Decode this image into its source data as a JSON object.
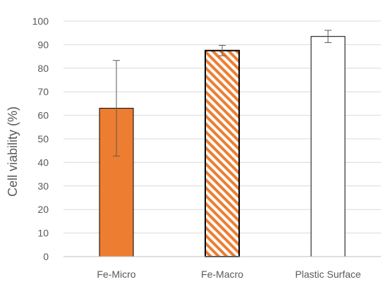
{
  "chart_data": {
    "type": "bar",
    "title": "",
    "xlabel": "",
    "ylabel": "Cell viability (%)",
    "ylim": [
      0,
      100
    ],
    "yticks": [
      0,
      10,
      20,
      30,
      40,
      50,
      60,
      70,
      80,
      90,
      100
    ],
    "grid": "horizontal",
    "categories": [
      "Fe-Micro",
      "Fe-Macro",
      "Plastic Surface"
    ],
    "values": [
      63,
      87.5,
      93.5
    ],
    "error": [
      20.3,
      2.2,
      2.6
    ],
    "bar_styles": [
      {
        "fill": "solid",
        "color": "#ED7D31",
        "stroke": "#000000"
      },
      {
        "fill": "diagonal-stripes",
        "color": "#ED7D31",
        "stroke": "#000000"
      },
      {
        "fill": "none",
        "color": "#FFFFFF",
        "stroke": "#000000"
      }
    ],
    "colors": {
      "grid": "#D9D9D9",
      "axis": "#BFBFBF",
      "error_bar": "#595959",
      "text": "#595959"
    }
  }
}
